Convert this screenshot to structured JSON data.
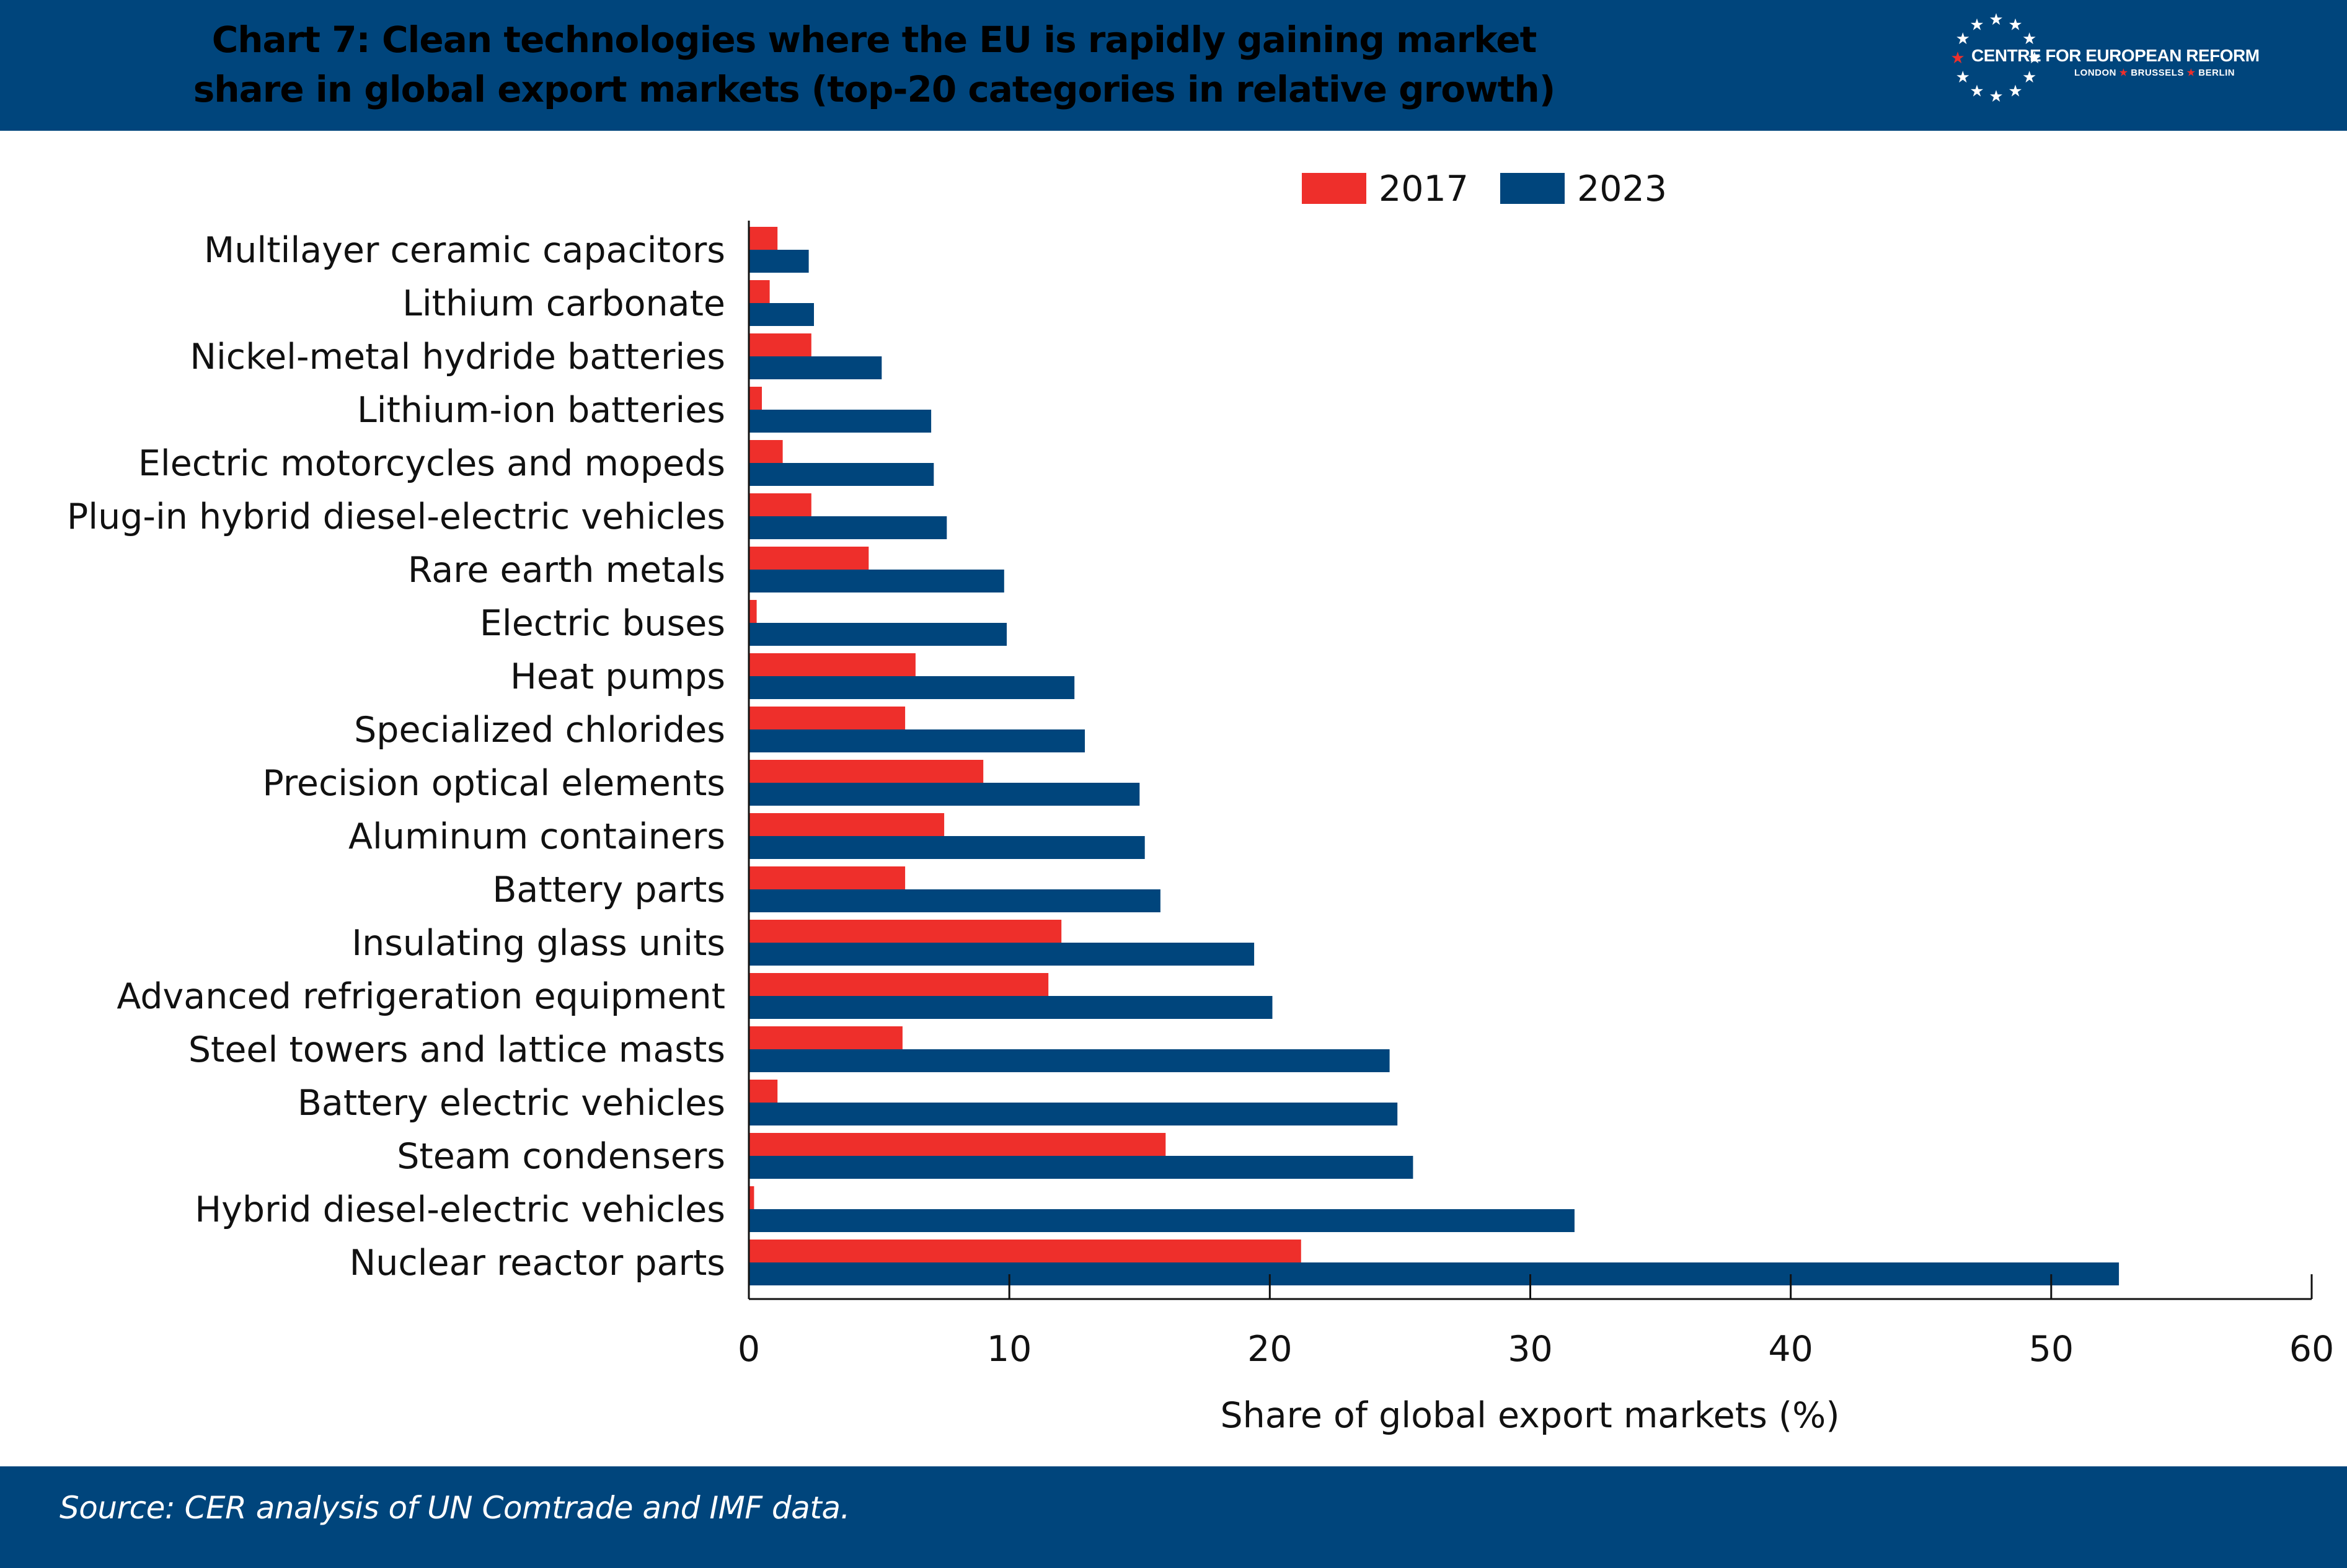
{
  "header": {
    "title_line1": "Chart 7: Clean technologies where the EU is rapidly gaining market",
    "title_line2": "share in global export markets (top-20 categories in relative growth)",
    "logo_name": "CENTRE FOR EUROPEAN REFORM",
    "logo_cities": [
      "LONDON",
      "BRUSSELS",
      "BERLIN"
    ],
    "logo_icon": "ring-of-stars-icon",
    "background_color": "#00457c"
  },
  "footer": {
    "source": "Source: CER analysis of UN Comtrade and IMF data."
  },
  "chart_data": {
    "type": "bar",
    "orientation": "horizontal",
    "categories": [
      "Multilayer ceramic capacitors",
      "Lithium carbonate",
      "Nickel-metal hydride batteries",
      "Lithium-ion batteries",
      "Electric motorcycles and mopeds",
      "Plug-in hybrid diesel-electric vehicles",
      "Rare earth metals",
      "Electric buses",
      "Heat pumps",
      "Specialized chlorides",
      "Precision optical elements",
      "Aluminum containers",
      "Battery parts",
      "Insulating glass units",
      "Advanced refrigeration equipment",
      "Steel towers and lattice masts",
      "Battery electric vehicles",
      "Steam condensers",
      "Hybrid diesel-electric vehicles",
      "Nuclear reactor parts"
    ],
    "series": [
      {
        "name": "2017",
        "color": "#ee2f2b",
        "values": [
          1.1,
          0.8,
          2.4,
          0.5,
          1.3,
          2.4,
          4.6,
          0.3,
          6.4,
          6.0,
          9.0,
          7.5,
          6.0,
          12.0,
          11.5,
          5.9,
          1.1,
          16.0,
          0.2,
          21.2
        ]
      },
      {
        "name": "2023",
        "color": "#00457c",
        "values": [
          2.3,
          2.5,
          5.1,
          7.0,
          7.1,
          7.6,
          9.8,
          9.9,
          12.5,
          12.9,
          15.0,
          15.2,
          15.8,
          19.4,
          20.1,
          24.6,
          24.9,
          25.5,
          31.7,
          52.6
        ]
      }
    ],
    "xlabel": "Share of global export markets (%)",
    "xlim": [
      0,
      60
    ],
    "xticks": [
      0,
      10,
      20,
      30,
      40,
      50,
      60
    ],
    "legend_position": "top",
    "grid": false
  }
}
